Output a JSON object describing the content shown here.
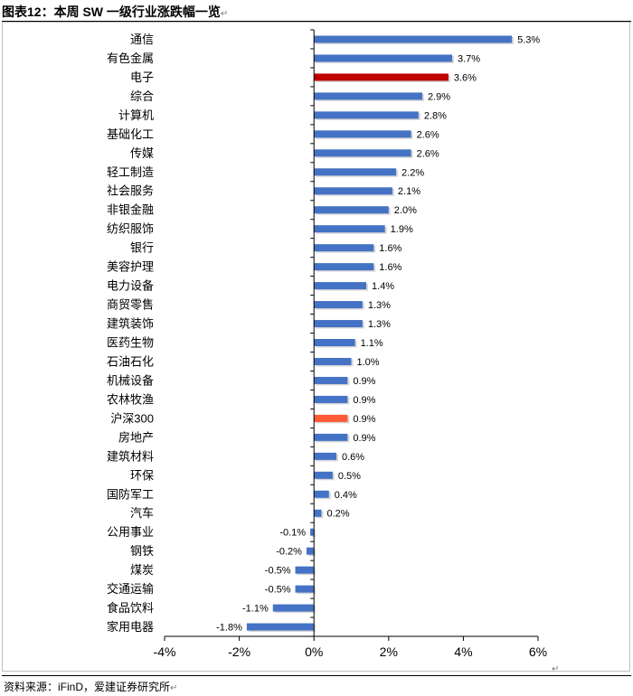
{
  "header": {
    "title": "图表12：本周 SW 一级行业涨跌幅一览",
    "para_mark": "↵"
  },
  "footer": {
    "source": "资料来源：iFinD，爱建证券研究所",
    "para_mark": "↵",
    "end_mark": "↵"
  },
  "chart_data": {
    "type": "bar",
    "orientation": "horizontal",
    "title": "",
    "xlabel": "",
    "ylabel": "",
    "xlim": [
      -4,
      6
    ],
    "x_ticks": [
      -4,
      -2,
      0,
      2,
      4,
      6
    ],
    "x_tick_labels": [
      "-4%",
      "-2%",
      "0%",
      "2%",
      "4%",
      "6%"
    ],
    "grid": false,
    "legend": "none",
    "default_color": "#4472C4",
    "highlight": [
      {
        "category": "电子",
        "color": "#C00000"
      },
      {
        "category": "沪深300",
        "color": "#FF5A36"
      }
    ],
    "categories": [
      "通信",
      "有色金属",
      "电子",
      "综合",
      "计算机",
      "基础化工",
      "传媒",
      "轻工制造",
      "社会服务",
      "非银金融",
      "纺织服饰",
      "银行",
      "美容护理",
      "电力设备",
      "商贸零售",
      "建筑装饰",
      "医药生物",
      "石油石化",
      "机械设备",
      "农林牧渔",
      "沪深300",
      "房地产",
      "建筑材料",
      "环保",
      "国防军工",
      "汽车",
      "公用事业",
      "钢铁",
      "煤炭",
      "交通运输",
      "食品饮料",
      "家用电器"
    ],
    "values": [
      5.3,
      3.7,
      3.6,
      2.9,
      2.8,
      2.6,
      2.6,
      2.2,
      2.1,
      2.0,
      1.9,
      1.6,
      1.6,
      1.4,
      1.3,
      1.3,
      1.1,
      1.0,
      0.9,
      0.9,
      0.9,
      0.9,
      0.6,
      0.5,
      0.4,
      0.2,
      -0.1,
      -0.2,
      -0.5,
      -0.5,
      -1.1,
      -1.8
    ],
    "value_labels": [
      "5.3%",
      "3.7%",
      "3.6%",
      "2.9%",
      "2.8%",
      "2.6%",
      "2.6%",
      "2.2%",
      "2.1%",
      "2.0%",
      "1.9%",
      "1.6%",
      "1.6%",
      "1.4%",
      "1.3%",
      "1.3%",
      "1.1%",
      "1.0%",
      "0.9%",
      "0.9%",
      "0.9%",
      "0.9%",
      "0.6%",
      "0.5%",
      "0.4%",
      "0.2%",
      "-0.1%",
      "-0.2%",
      "-0.5%",
      "-0.5%",
      "-1.1%",
      "-1.8%"
    ]
  }
}
